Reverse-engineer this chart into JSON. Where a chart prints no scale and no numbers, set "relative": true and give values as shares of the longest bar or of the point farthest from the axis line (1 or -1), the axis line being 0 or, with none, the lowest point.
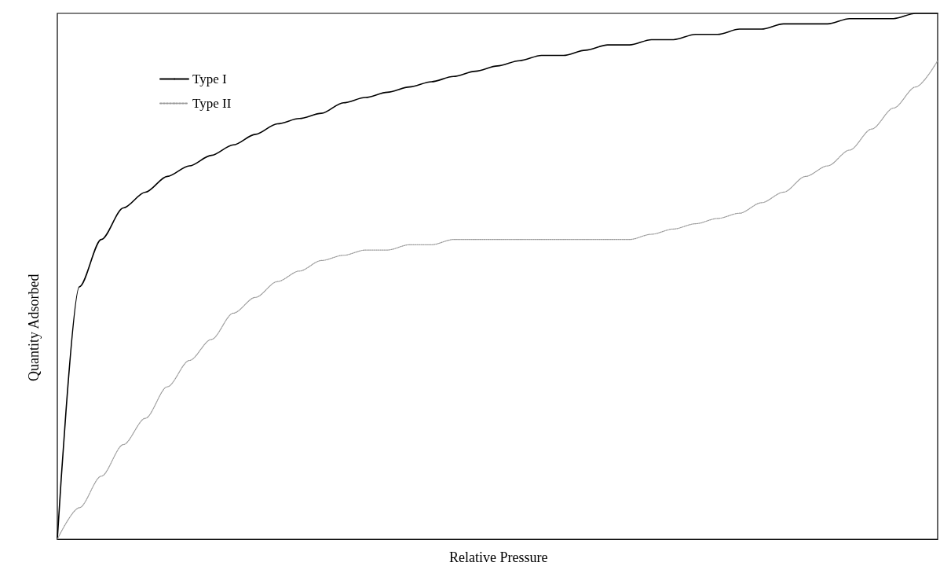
{
  "chart_data": {
    "type": "line",
    "xlabel": "Relative Pressure",
    "ylabel": "Quantity Adsorbed",
    "relative": true,
    "legend": "top left",
    "marker": "none",
    "grid": false,
    "categories": [
      null,
      null,
      null,
      null,
      null,
      null,
      null,
      null,
      null,
      null,
      null,
      null,
      null,
      null,
      null,
      null,
      null,
      null,
      null,
      null,
      null,
      null,
      null,
      null,
      null,
      null,
      null,
      null,
      null,
      null,
      null,
      null,
      null,
      null,
      null,
      null,
      null,
      null,
      null,
      null,
      null
    ],
    "series": [
      {
        "name": "Type I",
        "color": "#000000",
        "line_style": "solid",
        "values": [
          0,
          0.48,
          0.57,
          0.63,
          0.66,
          0.69,
          0.71,
          0.73,
          0.75,
          0.77,
          0.79,
          0.8,
          0.81,
          0.83,
          0.84,
          0.85,
          0.86,
          0.87,
          0.88,
          0.89,
          0.9,
          0.91,
          0.92,
          0.92,
          0.93,
          0.94,
          0.94,
          0.95,
          0.95,
          0.96,
          0.96,
          0.97,
          0.97,
          0.98,
          0.98,
          0.98,
          0.99,
          0.99,
          0.99,
          1.0,
          1
        ]
      },
      {
        "name": "Type II",
        "color": "#999999",
        "line_style": "dotted",
        "values": [
          0,
          0.06,
          0.12,
          0.18,
          0.23,
          0.29,
          0.34,
          0.38,
          0.43,
          0.46,
          0.49,
          0.51,
          0.53,
          0.54,
          0.55,
          0.55,
          0.56,
          0.56,
          0.57,
          0.57,
          0.57,
          0.57,
          0.57,
          0.57,
          0.57,
          0.57,
          0.57,
          0.58,
          0.59,
          0.6,
          0.61,
          0.62,
          0.64,
          0.66,
          0.69,
          0.71,
          0.74,
          0.78,
          0.82,
          0.86,
          0.91
        ]
      }
    ]
  }
}
